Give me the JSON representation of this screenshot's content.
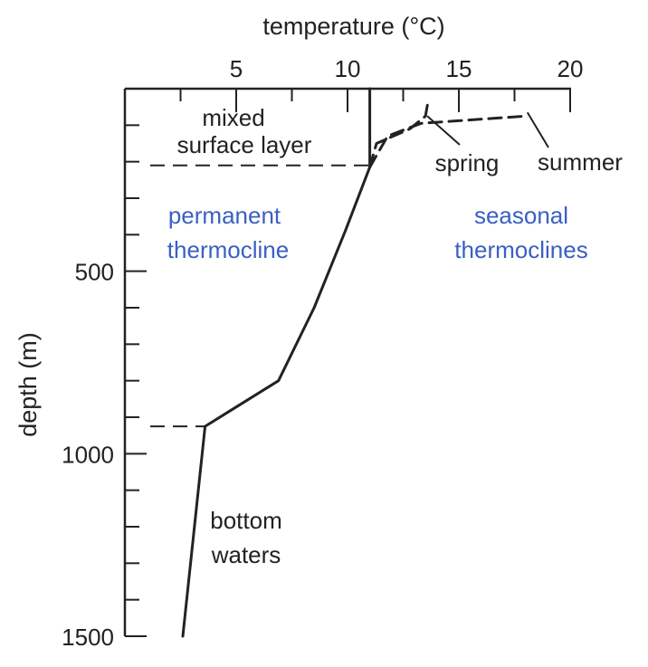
{
  "chart_data": {
    "type": "line",
    "title": "",
    "xlabel": "temperature (°C)",
    "ylabel": "depth (m)",
    "x_axis_position": "top",
    "y_axis_inverted": true,
    "xlim": [
      0,
      20
    ],
    "ylim": [
      0,
      1500
    ],
    "x_ticks": [
      5,
      10,
      15,
      20
    ],
    "y_ticks": [
      500,
      1000,
      1500
    ],
    "grid": false,
    "series": [
      {
        "name": "",
        "style": "solid",
        "points": [
          [
            11,
            0
          ],
          [
            11,
            215
          ],
          [
            9.9,
            390
          ],
          [
            8.5,
            600
          ],
          [
            6.9,
            800
          ],
          [
            3.6,
            925
          ],
          [
            2.6,
            1500
          ]
        ]
      },
      {
        "name": "spring",
        "style": "dashed",
        "points": [
          [
            11,
            215
          ],
          [
            11.3,
            150
          ],
          [
            12.8,
            110
          ],
          [
            13.5,
            75
          ],
          [
            13.6,
            40
          ]
        ]
      },
      {
        "name": "summer",
        "style": "dashed",
        "points": [
          [
            11,
            215
          ],
          [
            11.8,
            130
          ],
          [
            13.3,
            95
          ],
          [
            18,
            75
          ]
        ]
      }
    ],
    "reference_lines": [
      {
        "type": "horizontal",
        "y": 210,
        "style": "dashed",
        "xmax": 11
      },
      {
        "type": "horizontal",
        "y": 925,
        "style": "dashed",
        "xmax": 3.6
      }
    ],
    "annotations": {
      "mixed_line1": "mixed",
      "mixed_line2": "surface layer",
      "permanent_line1": "permanent",
      "permanent_line2": "thermocline",
      "seasonal_line1": "seasonal",
      "seasonal_line2": "thermoclines",
      "spring": "spring",
      "summer": "summer",
      "bottom_line1": "bottom",
      "bottom_line2": "waters"
    },
    "colors": {
      "axis": "#222222",
      "curve": "#222222",
      "region_label_blue": "#3a5fc4"
    }
  }
}
